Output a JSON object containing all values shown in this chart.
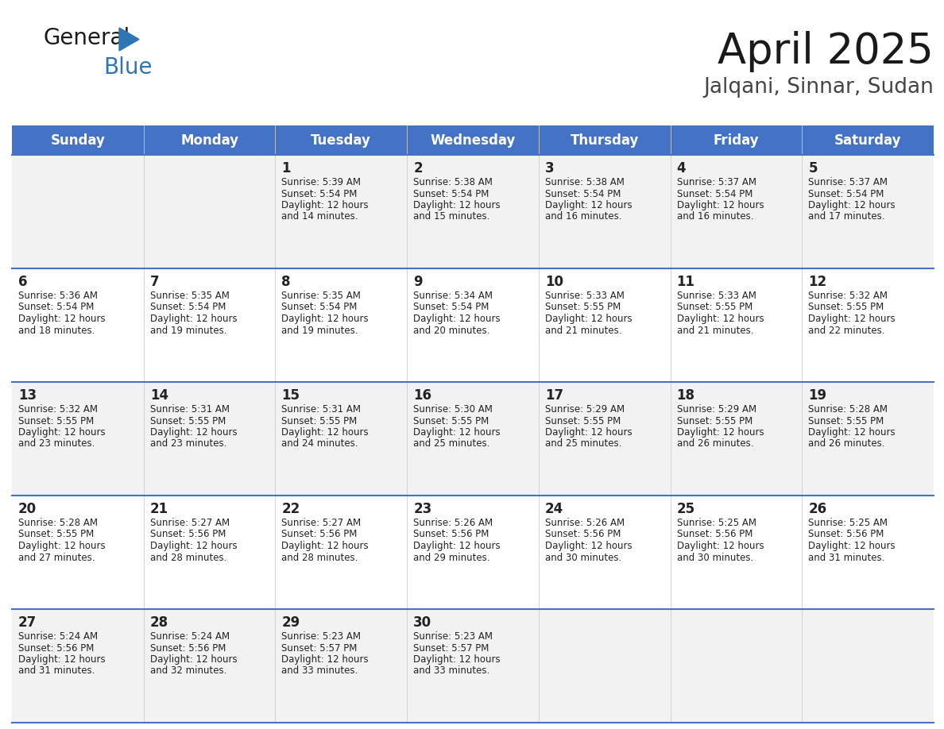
{
  "title": "April 2025",
  "subtitle": "Jalqani, Sinnar, Sudan",
  "header_bg": "#4472C4",
  "header_text_color": "#FFFFFF",
  "weekdays": [
    "Sunday",
    "Monday",
    "Tuesday",
    "Wednesday",
    "Thursday",
    "Friday",
    "Saturday"
  ],
  "row_bg_even": "#F2F2F2",
  "row_bg_odd": "#FFFFFF",
  "cell_text_color": "#222222",
  "divider_color": "#4472C4",
  "days": [
    {
      "day": 1,
      "col": 2,
      "row": 0,
      "sunrise": "5:39 AM",
      "sunset": "5:54 PM",
      "daylight_line1": "Daylight: 12 hours",
      "daylight_line2": "and 14 minutes."
    },
    {
      "day": 2,
      "col": 3,
      "row": 0,
      "sunrise": "5:38 AM",
      "sunset": "5:54 PM",
      "daylight_line1": "Daylight: 12 hours",
      "daylight_line2": "and 15 minutes."
    },
    {
      "day": 3,
      "col": 4,
      "row": 0,
      "sunrise": "5:38 AM",
      "sunset": "5:54 PM",
      "daylight_line1": "Daylight: 12 hours",
      "daylight_line2": "and 16 minutes."
    },
    {
      "day": 4,
      "col": 5,
      "row": 0,
      "sunrise": "5:37 AM",
      "sunset": "5:54 PM",
      "daylight_line1": "Daylight: 12 hours",
      "daylight_line2": "and 16 minutes."
    },
    {
      "day": 5,
      "col": 6,
      "row": 0,
      "sunrise": "5:37 AM",
      "sunset": "5:54 PM",
      "daylight_line1": "Daylight: 12 hours",
      "daylight_line2": "and 17 minutes."
    },
    {
      "day": 6,
      "col": 0,
      "row": 1,
      "sunrise": "5:36 AM",
      "sunset": "5:54 PM",
      "daylight_line1": "Daylight: 12 hours",
      "daylight_line2": "and 18 minutes."
    },
    {
      "day": 7,
      "col": 1,
      "row": 1,
      "sunrise": "5:35 AM",
      "sunset": "5:54 PM",
      "daylight_line1": "Daylight: 12 hours",
      "daylight_line2": "and 19 minutes."
    },
    {
      "day": 8,
      "col": 2,
      "row": 1,
      "sunrise": "5:35 AM",
      "sunset": "5:54 PM",
      "daylight_line1": "Daylight: 12 hours",
      "daylight_line2": "and 19 minutes."
    },
    {
      "day": 9,
      "col": 3,
      "row": 1,
      "sunrise": "5:34 AM",
      "sunset": "5:54 PM",
      "daylight_line1": "Daylight: 12 hours",
      "daylight_line2": "and 20 minutes."
    },
    {
      "day": 10,
      "col": 4,
      "row": 1,
      "sunrise": "5:33 AM",
      "sunset": "5:55 PM",
      "daylight_line1": "Daylight: 12 hours",
      "daylight_line2": "and 21 minutes."
    },
    {
      "day": 11,
      "col": 5,
      "row": 1,
      "sunrise": "5:33 AM",
      "sunset": "5:55 PM",
      "daylight_line1": "Daylight: 12 hours",
      "daylight_line2": "and 21 minutes."
    },
    {
      "day": 12,
      "col": 6,
      "row": 1,
      "sunrise": "5:32 AM",
      "sunset": "5:55 PM",
      "daylight_line1": "Daylight: 12 hours",
      "daylight_line2": "and 22 minutes."
    },
    {
      "day": 13,
      "col": 0,
      "row": 2,
      "sunrise": "5:32 AM",
      "sunset": "5:55 PM",
      "daylight_line1": "Daylight: 12 hours",
      "daylight_line2": "and 23 minutes."
    },
    {
      "day": 14,
      "col": 1,
      "row": 2,
      "sunrise": "5:31 AM",
      "sunset": "5:55 PM",
      "daylight_line1": "Daylight: 12 hours",
      "daylight_line2": "and 23 minutes."
    },
    {
      "day": 15,
      "col": 2,
      "row": 2,
      "sunrise": "5:31 AM",
      "sunset": "5:55 PM",
      "daylight_line1": "Daylight: 12 hours",
      "daylight_line2": "and 24 minutes."
    },
    {
      "day": 16,
      "col": 3,
      "row": 2,
      "sunrise": "5:30 AM",
      "sunset": "5:55 PM",
      "daylight_line1": "Daylight: 12 hours",
      "daylight_line2": "and 25 minutes."
    },
    {
      "day": 17,
      "col": 4,
      "row": 2,
      "sunrise": "5:29 AM",
      "sunset": "5:55 PM",
      "daylight_line1": "Daylight: 12 hours",
      "daylight_line2": "and 25 minutes."
    },
    {
      "day": 18,
      "col": 5,
      "row": 2,
      "sunrise": "5:29 AM",
      "sunset": "5:55 PM",
      "daylight_line1": "Daylight: 12 hours",
      "daylight_line2": "and 26 minutes."
    },
    {
      "day": 19,
      "col": 6,
      "row": 2,
      "sunrise": "5:28 AM",
      "sunset": "5:55 PM",
      "daylight_line1": "Daylight: 12 hours",
      "daylight_line2": "and 26 minutes."
    },
    {
      "day": 20,
      "col": 0,
      "row": 3,
      "sunrise": "5:28 AM",
      "sunset": "5:55 PM",
      "daylight_line1": "Daylight: 12 hours",
      "daylight_line2": "and 27 minutes."
    },
    {
      "day": 21,
      "col": 1,
      "row": 3,
      "sunrise": "5:27 AM",
      "sunset": "5:56 PM",
      "daylight_line1": "Daylight: 12 hours",
      "daylight_line2": "and 28 minutes."
    },
    {
      "day": 22,
      "col": 2,
      "row": 3,
      "sunrise": "5:27 AM",
      "sunset": "5:56 PM",
      "daylight_line1": "Daylight: 12 hours",
      "daylight_line2": "and 28 minutes."
    },
    {
      "day": 23,
      "col": 3,
      "row": 3,
      "sunrise": "5:26 AM",
      "sunset": "5:56 PM",
      "daylight_line1": "Daylight: 12 hours",
      "daylight_line2": "and 29 minutes."
    },
    {
      "day": 24,
      "col": 4,
      "row": 3,
      "sunrise": "5:26 AM",
      "sunset": "5:56 PM",
      "daylight_line1": "Daylight: 12 hours",
      "daylight_line2": "and 30 minutes."
    },
    {
      "day": 25,
      "col": 5,
      "row": 3,
      "sunrise": "5:25 AM",
      "sunset": "5:56 PM",
      "daylight_line1": "Daylight: 12 hours",
      "daylight_line2": "and 30 minutes."
    },
    {
      "day": 26,
      "col": 6,
      "row": 3,
      "sunrise": "5:25 AM",
      "sunset": "5:56 PM",
      "daylight_line1": "Daylight: 12 hours",
      "daylight_line2": "and 31 minutes."
    },
    {
      "day": 27,
      "col": 0,
      "row": 4,
      "sunrise": "5:24 AM",
      "sunset": "5:56 PM",
      "daylight_line1": "Daylight: 12 hours",
      "daylight_line2": "and 31 minutes."
    },
    {
      "day": 28,
      "col": 1,
      "row": 4,
      "sunrise": "5:24 AM",
      "sunset": "5:56 PM",
      "daylight_line1": "Daylight: 12 hours",
      "daylight_line2": "and 32 minutes."
    },
    {
      "day": 29,
      "col": 2,
      "row": 4,
      "sunrise": "5:23 AM",
      "sunset": "5:57 PM",
      "daylight_line1": "Daylight: 12 hours",
      "daylight_line2": "and 33 minutes."
    },
    {
      "day": 30,
      "col": 3,
      "row": 4,
      "sunrise": "5:23 AM",
      "sunset": "5:57 PM",
      "daylight_line1": "Daylight: 12 hours",
      "daylight_line2": "and 33 minutes."
    }
  ],
  "num_rows": 5,
  "num_cols": 7,
  "title_fontsize": 38,
  "subtitle_fontsize": 19,
  "header_fontsize": 12,
  "day_number_fontsize": 12,
  "cell_text_fontsize": 8.5
}
